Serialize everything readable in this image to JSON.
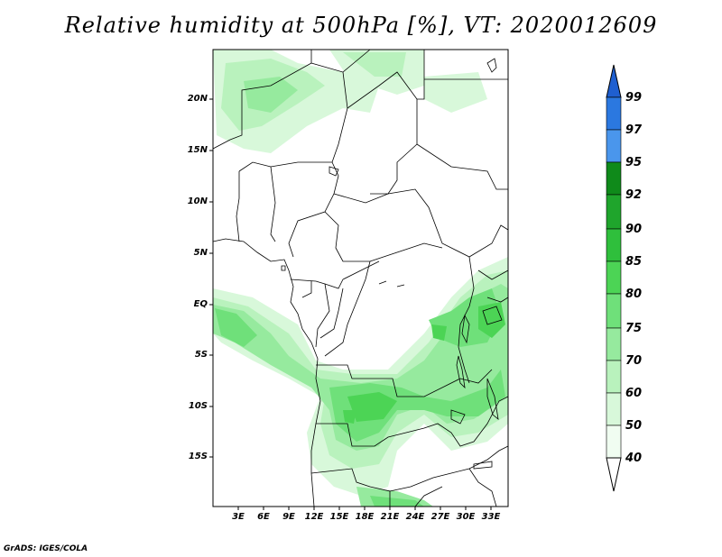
{
  "title": "Relative humidity at 500hPa [%], VT: 2020012609",
  "credit": "GrADS: IGES/COLA",
  "lat_labels": [
    "20N",
    "15N",
    "10N",
    "5N",
    "EQ",
    "5S",
    "10S",
    "15S"
  ],
  "lon_labels": [
    "3E",
    "6E",
    "9E",
    "12E",
    "15E",
    "18E",
    "21E",
    "24E",
    "27E",
    "30E",
    "33E"
  ],
  "colorbar": {
    "levels": [
      "99",
      "97",
      "95",
      "92",
      "90",
      "85",
      "80",
      "75",
      "70",
      "60",
      "50",
      "40"
    ],
    "colors": [
      "#1f5fd0",
      "#2b78e0",
      "#4a96ec",
      "#0f8a1a",
      "#1fa52c",
      "#2fbf3c",
      "#4cd455",
      "#6fe07a",
      "#96ea9e",
      "#b9f2bd",
      "#d8f8da",
      "#f0fdf1"
    ]
  },
  "colors": {
    "land_dry": "#ffffff",
    "border": "#000000"
  }
}
